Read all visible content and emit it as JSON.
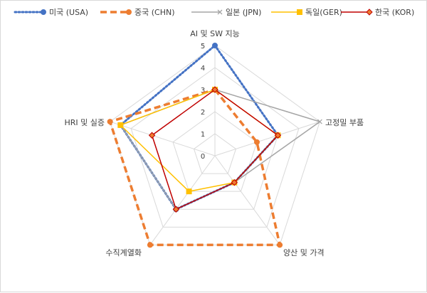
{
  "chart_data": {
    "type": "radar",
    "categories": [
      "AI 및 SW 지능",
      "고정밀 부품",
      "양산 및 가격",
      "수직계열화",
      "HRI 및 실증"
    ],
    "radial_ticks": [
      "0",
      "1",
      "2",
      "3",
      "4",
      "5"
    ],
    "rmax": 5,
    "grid": true,
    "legend_position": "top",
    "series": [
      {
        "name": "미국 (USA)",
        "values": [
          5,
          3,
          1.5,
          3,
          4.5
        ],
        "color": "#4472c4",
        "line": "dotted",
        "marker": "circle"
      },
      {
        "name": "중국 (CHN)",
        "values": [
          3,
          2,
          5,
          5,
          5
        ],
        "color": "#ed7d31",
        "line": "dashed",
        "marker": "circle"
      },
      {
        "name": "일본 (JPN)",
        "values": [
          3,
          5,
          1.5,
          3,
          4.5
        ],
        "color": "#a5a5a5",
        "line": "solid",
        "marker": "x"
      },
      {
        "name": "독일(GER)",
        "values": [
          3,
          3,
          1.5,
          2,
          4.5
        ],
        "color": "#ffc000",
        "line": "solid",
        "marker": "square"
      },
      {
        "name": "한국 (KOR)",
        "values": [
          3,
          3,
          1.5,
          3,
          3
        ],
        "color": "#c00000",
        "line": "solid",
        "marker": "diamond"
      }
    ]
  }
}
